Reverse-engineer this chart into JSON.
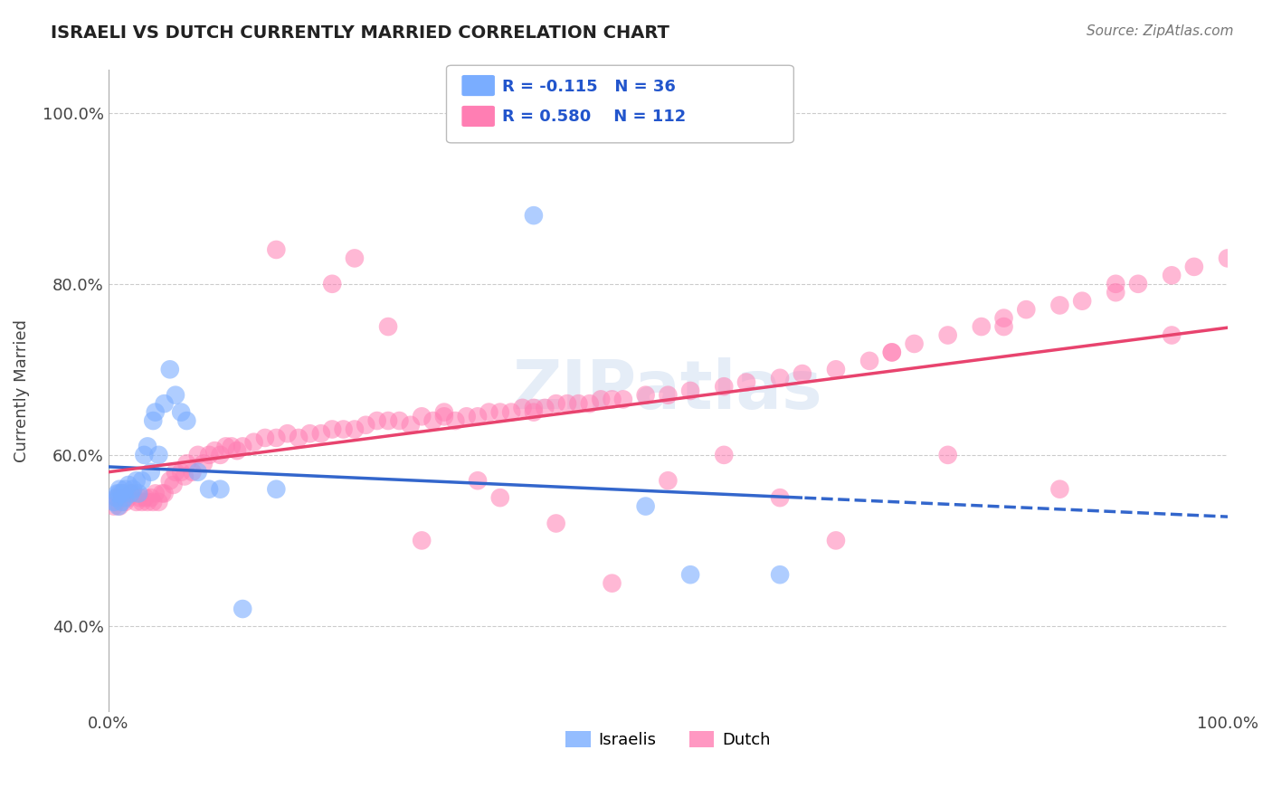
{
  "title": "ISRAELI VS DUTCH CURRENTLY MARRIED CORRELATION CHART",
  "source": "Source: ZipAtlas.com",
  "ylabel": "Currently Married",
  "watermark": "ZIPatlas",
  "xlim": [
    0.0,
    1.0
  ],
  "ylim": [
    0.3,
    1.05
  ],
  "x_tick_labels": [
    "0.0%",
    "100.0%"
  ],
  "y_ticks": [
    0.4,
    0.6,
    0.8,
    1.0
  ],
  "y_tick_labels": [
    "40.0%",
    "60.0%",
    "80.0%",
    "100.0%"
  ],
  "israeli_color": "#7aadff",
  "dutch_color": "#ff7eb3",
  "israeli_line_color": "#3366cc",
  "dutch_line_color": "#e8436e",
  "israeli_R": -0.115,
  "israeli_N": 36,
  "dutch_R": 0.58,
  "dutch_N": 112,
  "israeli_x": [
    0.005,
    0.007,
    0.008,
    0.009,
    0.01,
    0.01,
    0.012,
    0.013,
    0.015,
    0.015,
    0.018,
    0.02,
    0.022,
    0.025,
    0.027,
    0.03,
    0.032,
    0.035,
    0.038,
    0.04,
    0.042,
    0.045,
    0.05,
    0.055,
    0.06,
    0.065,
    0.07,
    0.08,
    0.09,
    0.1,
    0.12,
    0.15,
    0.38,
    0.48,
    0.52,
    0.6
  ],
  "israeli_y": [
    0.545,
    0.55,
    0.555,
    0.54,
    0.555,
    0.56,
    0.545,
    0.555,
    0.55,
    0.56,
    0.565,
    0.555,
    0.56,
    0.57,
    0.555,
    0.57,
    0.6,
    0.61,
    0.58,
    0.64,
    0.65,
    0.6,
    0.66,
    0.7,
    0.67,
    0.65,
    0.64,
    0.58,
    0.56,
    0.56,
    0.42,
    0.56,
    0.88,
    0.54,
    0.46,
    0.46
  ],
  "dutch_x": [
    0.005,
    0.008,
    0.01,
    0.012,
    0.015,
    0.018,
    0.02,
    0.022,
    0.025,
    0.028,
    0.03,
    0.033,
    0.035,
    0.038,
    0.04,
    0.042,
    0.045,
    0.048,
    0.05,
    0.055,
    0.058,
    0.06,
    0.065,
    0.068,
    0.07,
    0.075,
    0.08,
    0.085,
    0.09,
    0.095,
    0.1,
    0.105,
    0.11,
    0.115,
    0.12,
    0.13,
    0.14,
    0.15,
    0.16,
    0.17,
    0.18,
    0.19,
    0.2,
    0.21,
    0.22,
    0.23,
    0.24,
    0.25,
    0.26,
    0.27,
    0.28,
    0.29,
    0.3,
    0.31,
    0.32,
    0.33,
    0.34,
    0.35,
    0.36,
    0.37,
    0.38,
    0.39,
    0.4,
    0.41,
    0.42,
    0.43,
    0.44,
    0.45,
    0.46,
    0.48,
    0.5,
    0.52,
    0.55,
    0.57,
    0.6,
    0.62,
    0.65,
    0.68,
    0.7,
    0.72,
    0.75,
    0.78,
    0.8,
    0.82,
    0.85,
    0.87,
    0.9,
    0.92,
    0.95,
    0.97,
    1.0,
    0.15,
    0.2,
    0.25,
    0.3,
    0.35,
    0.4,
    0.45,
    0.5,
    0.55,
    0.6,
    0.65,
    0.7,
    0.75,
    0.8,
    0.85,
    0.9,
    0.95,
    0.22,
    0.28,
    0.33,
    0.38
  ],
  "dutch_y": [
    0.54,
    0.55,
    0.54,
    0.555,
    0.545,
    0.55,
    0.555,
    0.555,
    0.545,
    0.55,
    0.545,
    0.55,
    0.545,
    0.55,
    0.545,
    0.555,
    0.545,
    0.555,
    0.555,
    0.57,
    0.565,
    0.58,
    0.58,
    0.575,
    0.59,
    0.58,
    0.6,
    0.59,
    0.6,
    0.605,
    0.6,
    0.61,
    0.61,
    0.605,
    0.61,
    0.615,
    0.62,
    0.62,
    0.625,
    0.62,
    0.625,
    0.625,
    0.63,
    0.63,
    0.63,
    0.635,
    0.64,
    0.64,
    0.64,
    0.635,
    0.645,
    0.64,
    0.645,
    0.64,
    0.645,
    0.645,
    0.65,
    0.65,
    0.65,
    0.655,
    0.655,
    0.655,
    0.66,
    0.66,
    0.66,
    0.66,
    0.665,
    0.665,
    0.665,
    0.67,
    0.67,
    0.675,
    0.68,
    0.685,
    0.69,
    0.695,
    0.7,
    0.71,
    0.72,
    0.73,
    0.74,
    0.75,
    0.76,
    0.77,
    0.775,
    0.78,
    0.79,
    0.8,
    0.81,
    0.82,
    0.83,
    0.84,
    0.8,
    0.75,
    0.65,
    0.55,
    0.52,
    0.45,
    0.57,
    0.6,
    0.55,
    0.5,
    0.72,
    0.6,
    0.75,
    0.56,
    0.8,
    0.74,
    0.83,
    0.5,
    0.57,
    0.65
  ],
  "background_color": "#ffffff",
  "grid_color": "#cccccc"
}
